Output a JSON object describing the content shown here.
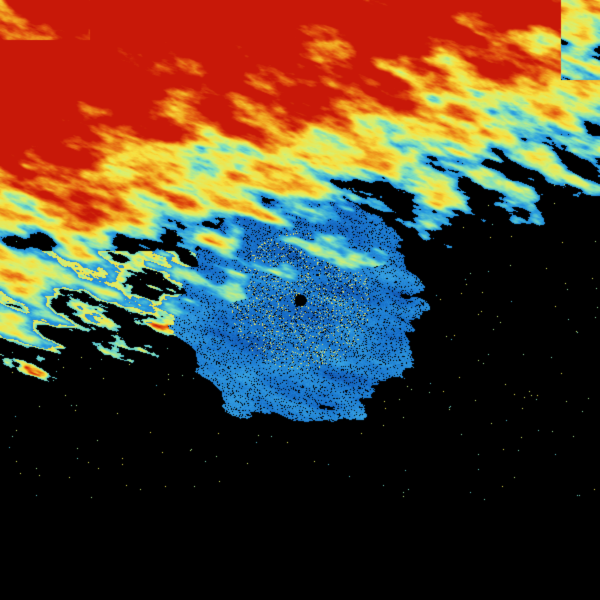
{
  "image": {
    "kind": "weather radar reflectivity sweep",
    "background_color": "#000000",
    "palette": [
      "#0a2a8a",
      "#1560c8",
      "#2aa0e0",
      "#7ee0c0",
      "#d8f070",
      "#f8e040",
      "#f0a020",
      "#e05010",
      "#c81808"
    ],
    "clear_air_palette": [
      "#0a3a9a",
      "#1a78d0",
      "#40b0e8",
      "#e8e060"
    ]
  }
}
